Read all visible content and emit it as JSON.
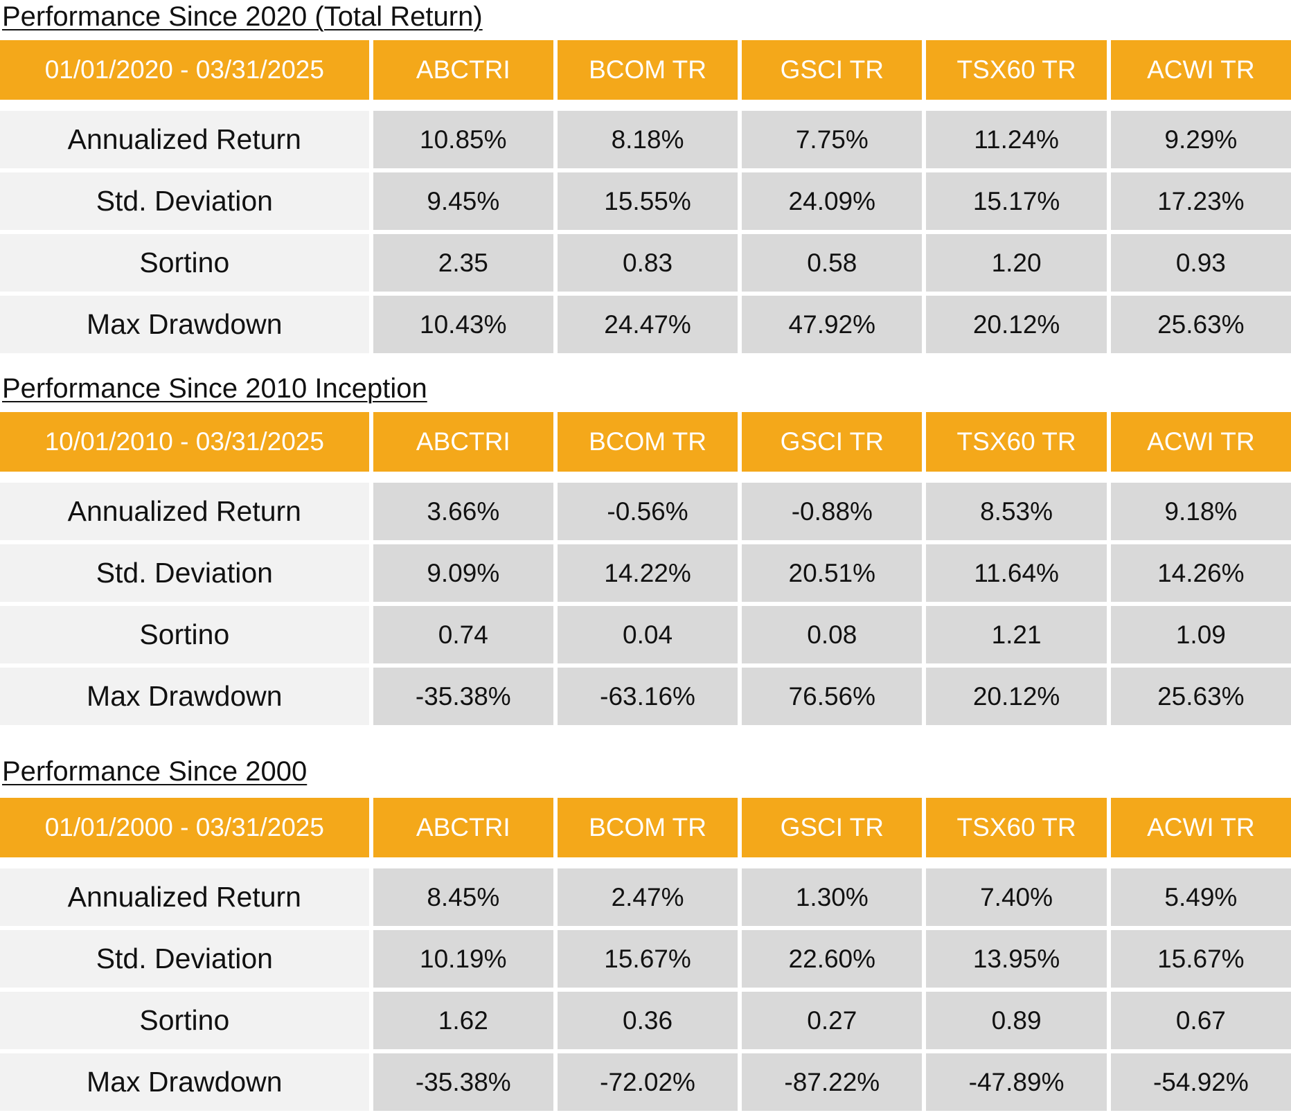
{
  "sections": [
    {
      "title": "Performance Since 2020 (Total Return)",
      "period": "01/01/2020 - 03/31/2025",
      "columns": [
        "ABCTRI",
        "BCOM TR",
        "GSCI TR",
        "TSX60 TR",
        "ACWI TR"
      ],
      "rows": [
        {
          "label": "Annualized Return",
          "values": [
            "10.85%",
            "8.18%",
            "7.75%",
            "11.24%",
            "9.29%"
          ]
        },
        {
          "label": "Std. Deviation",
          "values": [
            "9.45%",
            "15.55%",
            "24.09%",
            "15.17%",
            "17.23%"
          ]
        },
        {
          "label": "Sortino",
          "values": [
            "2.35",
            "0.83",
            "0.58",
            "1.20",
            "0.93"
          ]
        },
        {
          "label": "Max Drawdown",
          "values": [
            "10.43%",
            "24.47%",
            "47.92%",
            "20.12%",
            "25.63%"
          ]
        }
      ]
    },
    {
      "title": "Performance Since 2010 Inception",
      "period": "10/01/2010 - 03/31/2025",
      "columns": [
        "ABCTRI",
        "BCOM TR",
        "GSCI TR",
        "TSX60 TR",
        "ACWI TR"
      ],
      "rows": [
        {
          "label": "Annualized Return",
          "values": [
            "3.66%",
            "-0.56%",
            "-0.88%",
            "8.53%",
            "9.18%"
          ]
        },
        {
          "label": "Std. Deviation",
          "values": [
            "9.09%",
            "14.22%",
            "20.51%",
            "11.64%",
            "14.26%"
          ]
        },
        {
          "label": "Sortino",
          "values": [
            "0.74",
            "0.04",
            "0.08",
            "1.21",
            "1.09"
          ]
        },
        {
          "label": "Max Drawdown",
          "values": [
            "-35.38%",
            "-63.16%",
            "76.56%",
            "20.12%",
            "25.63%"
          ]
        }
      ]
    },
    {
      "title": "Performance Since 2000",
      "period": "01/01/2000 - 03/31/2025",
      "columns": [
        "ABCTRI",
        "BCOM TR",
        "GSCI TR",
        "TSX60 TR",
        "ACWI TR"
      ],
      "rows": [
        {
          "label": "Annualized Return",
          "values": [
            "8.45%",
            "2.47%",
            "1.30%",
            "7.40%",
            "5.49%"
          ]
        },
        {
          "label": "Std. Deviation",
          "values": [
            "10.19%",
            "15.67%",
            "22.60%",
            "13.95%",
            "15.67%"
          ]
        },
        {
          "label": "Sortino",
          "values": [
            "1.62",
            "0.36",
            "0.27",
            "0.89",
            "0.67"
          ]
        },
        {
          "label": "Max Drawdown",
          "values": [
            "-35.38%",
            "-72.02%",
            "-87.22%",
            "-47.89%",
            "-54.92%"
          ]
        }
      ]
    }
  ],
  "colors": {
    "header_bg": "#f4a81a",
    "header_text": "#ffffff",
    "label_bg": "#f2f2f2",
    "value_bg": "#d9d9d9"
  }
}
